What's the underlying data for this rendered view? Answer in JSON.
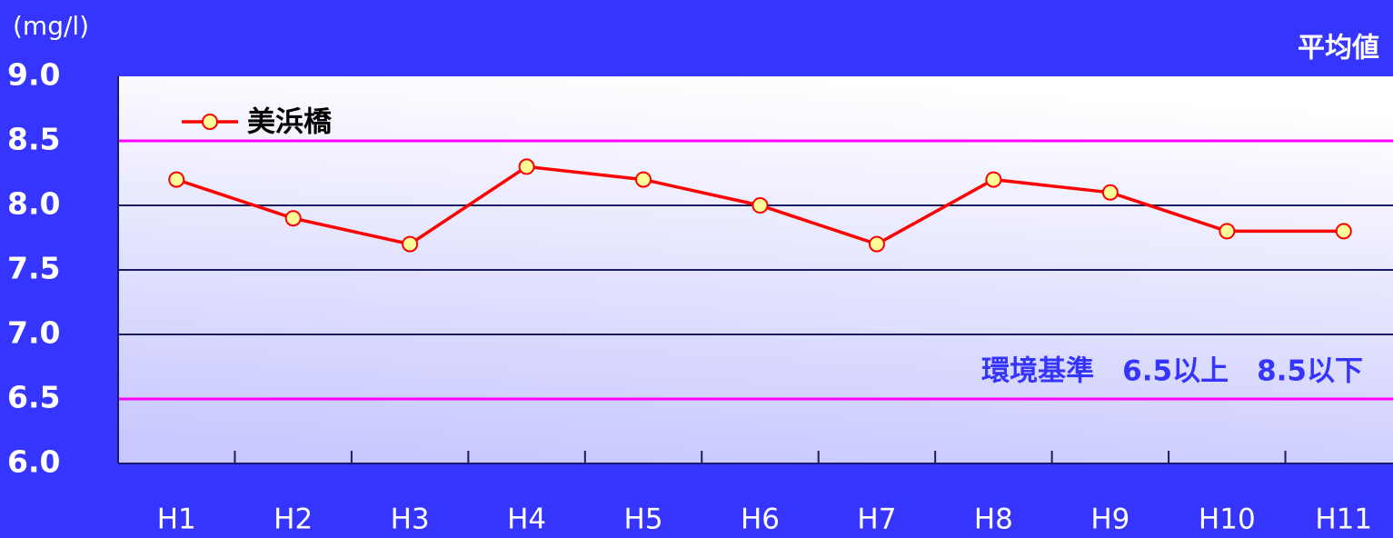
{
  "chart_data": {
    "type": "line",
    "unit_label": "(mg/l)",
    "title": "平均値",
    "annotation": "環境基準　6.5以上　8.5以下",
    "categories": [
      "H1",
      "H2",
      "H3",
      "H4",
      "H5",
      "H6",
      "H7",
      "H8",
      "H9",
      "H10",
      "H11"
    ],
    "series": [
      {
        "name": "美浜橋",
        "color": "#ff0000",
        "marker_color": "#ffff99",
        "values": [
          8.2,
          7.9,
          7.7,
          8.3,
          8.2,
          8.0,
          7.7,
          8.2,
          8.1,
          7.8,
          7.8
        ]
      }
    ],
    "ylim": [
      6.0,
      9.0
    ],
    "yticks": [
      {
        "value": 6.0,
        "label": "6.0"
      },
      6.5,
      {
        "value": 7.0,
        "label": "7.0"
      },
      7.5,
      {
        "value": 8.0,
        "label": "8.0"
      },
      8.5,
      {
        "value": 9.0,
        "label": "9.0"
      }
    ],
    "reference_lines": [
      6.5,
      8.5
    ],
    "reference_color": "#ff00ff",
    "grid": true,
    "legend": "top-left"
  }
}
